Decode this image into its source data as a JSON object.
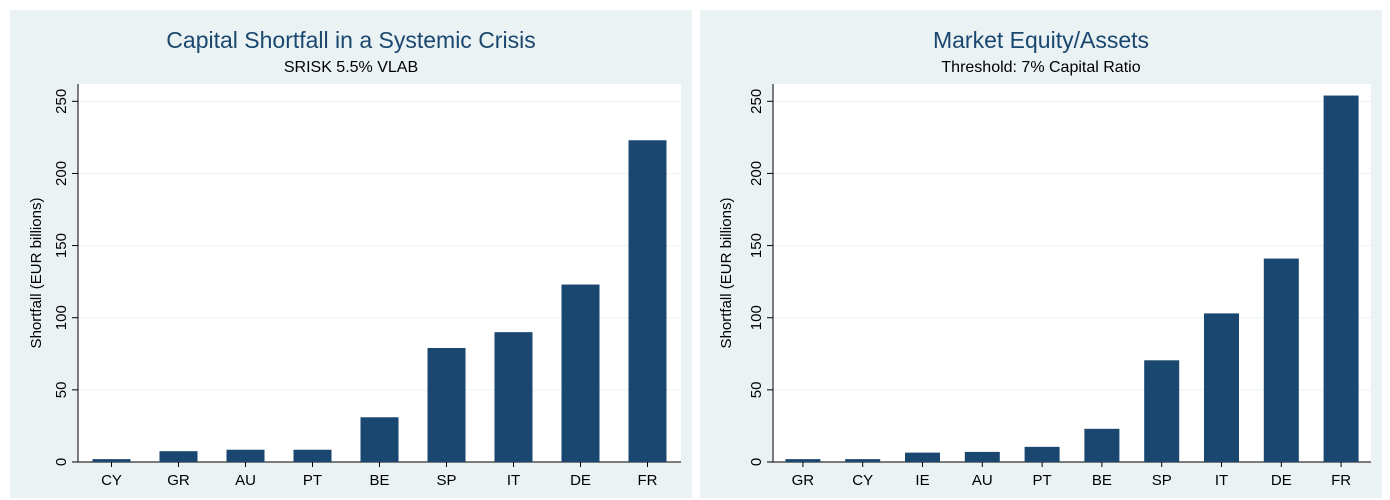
{
  "colors": {
    "bar": "#1a476f",
    "panel_bg": "#eaf2f3",
    "plot_bg": "#ffffff",
    "grid": "#eaf2f3",
    "title": "#1a476f"
  },
  "chart_data": [
    {
      "type": "bar",
      "title": "Capital Shortfall in a Systemic Crisis",
      "subtitle": "SRISK 5.5% VLAB",
      "xlabel": "",
      "ylabel": "Shortfall (EUR billions)",
      "ylim": [
        0,
        262
      ],
      "yticks": [
        0,
        50,
        100,
        150,
        200,
        250
      ],
      "grid": true,
      "categories": [
        "CY",
        "GR",
        "AU",
        "PT",
        "BE",
        "SP",
        "IT",
        "DE",
        "FR"
      ],
      "values": [
        2,
        7.5,
        8.5,
        8.5,
        31,
        79,
        90,
        123,
        223
      ]
    },
    {
      "type": "bar",
      "title": "Market Equity/Assets",
      "subtitle": "Threshold: 7% Capital Ratio",
      "xlabel": "",
      "ylabel": "Shortfall (EUR billions)",
      "ylim": [
        0,
        262
      ],
      "yticks": [
        0,
        50,
        100,
        150,
        200,
        250
      ],
      "grid": true,
      "categories": [
        "GR",
        "CY",
        "IE",
        "AU",
        "PT",
        "BE",
        "SP",
        "IT",
        "DE",
        "FR"
      ],
      "values": [
        2,
        2,
        6.5,
        7,
        10.5,
        23,
        70.5,
        103,
        141,
        254
      ]
    }
  ]
}
